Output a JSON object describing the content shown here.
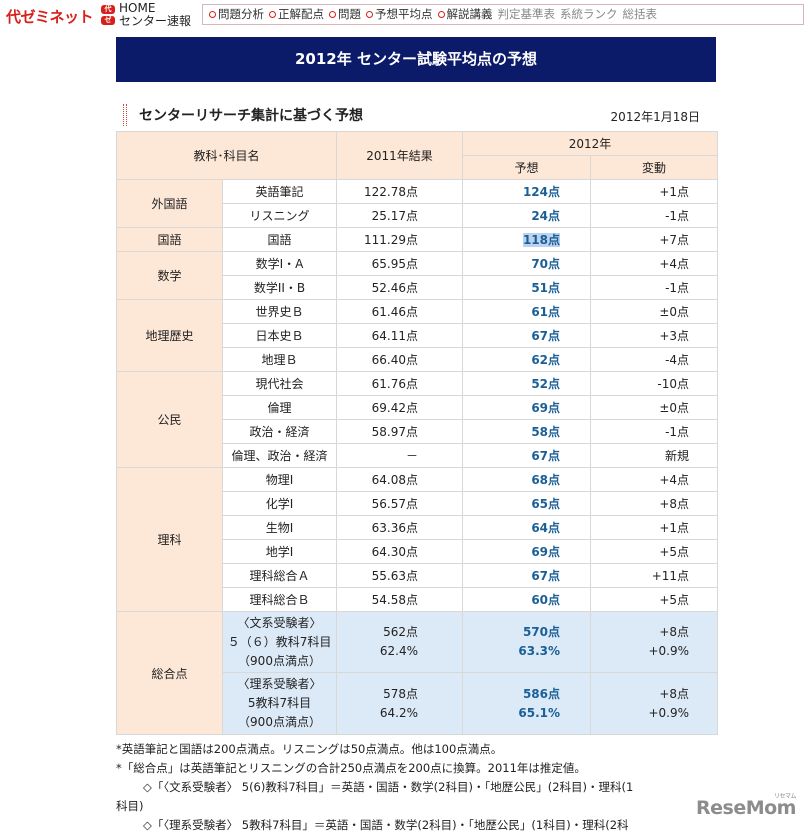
{
  "header": {
    "logo": "代ゼミネット",
    "logo_mark": [
      "代",
      "ゼ"
    ],
    "home": "HOME",
    "home_sub": "センター速報",
    "nav": [
      {
        "label": "問題分析",
        "active": true
      },
      {
        "label": "正解配点",
        "active": true
      },
      {
        "label": "問題",
        "active": true
      },
      {
        "label": "予想平均点",
        "active": true
      },
      {
        "label": "解説講義",
        "active": true
      },
      {
        "label": "判定基準表",
        "active": false
      },
      {
        "label": "系統ランク",
        "active": false
      },
      {
        "label": "総括表",
        "active": false
      }
    ]
  },
  "banner": "2012年 センター試験平均点の予想",
  "subhead": {
    "title": "センターリサーチ集計に基づく予想",
    "date": "2012年1月18日"
  },
  "table": {
    "h_subject": "教科･科目名",
    "h_2011": "2011年結果",
    "h_2012": "2012年",
    "h_pred": "予想",
    "h_change": "変動",
    "groups": [
      {
        "name": "外国語",
        "rows": [
          {
            "subj": "英語筆記",
            "r2011": "122.78点",
            "pred": "124点",
            "chg": "+1点"
          },
          {
            "subj": "リスニング",
            "r2011": "25.17点",
            "pred": "24点",
            "chg": "-1点"
          }
        ]
      },
      {
        "name": "国語",
        "rows": [
          {
            "subj": "国語",
            "r2011": "111.29点",
            "pred": "118点",
            "chg": "+7点"
          }
        ]
      },
      {
        "name": "数学",
        "rows": [
          {
            "subj": "数学I・A",
            "r2011": "65.95点",
            "pred": "70点",
            "chg": "+4点"
          },
          {
            "subj": "数学II・B",
            "r2011": "52.46点",
            "pred": "51点",
            "chg": "-1点"
          }
        ]
      },
      {
        "name": "地理歴史",
        "rows": [
          {
            "subj": "世界史Ｂ",
            "r2011": "61.46点",
            "pred": "61点",
            "chg": "±0点"
          },
          {
            "subj": "日本史Ｂ",
            "r2011": "64.11点",
            "pred": "67点",
            "chg": "+3点"
          },
          {
            "subj": "地理Ｂ",
            "r2011": "66.40点",
            "pred": "62点",
            "chg": "-4点"
          }
        ]
      },
      {
        "name": "公民",
        "rows": [
          {
            "subj": "現代社会",
            "r2011": "61.76点",
            "pred": "52点",
            "chg": "-10点"
          },
          {
            "subj": "倫理",
            "r2011": "69.42点",
            "pred": "69点",
            "chg": "±0点"
          },
          {
            "subj": "政治・経済",
            "r2011": "58.97点",
            "pred": "58点",
            "chg": "-1点"
          },
          {
            "subj": "倫理、政治・経済",
            "r2011": "－",
            "pred": "67点",
            "chg": "新規"
          }
        ]
      },
      {
        "name": "理科",
        "rows": [
          {
            "subj": "物理I",
            "r2011": "64.08点",
            "pred": "68点",
            "chg": "+4点"
          },
          {
            "subj": "化学I",
            "r2011": "56.57点",
            "pred": "65点",
            "chg": "+8点"
          },
          {
            "subj": "生物I",
            "r2011": "63.36点",
            "pred": "64点",
            "chg": "+1点"
          },
          {
            "subj": "地学I",
            "r2011": "64.30点",
            "pred": "69点",
            "chg": "+5点"
          },
          {
            "subj": "理科総合Ａ",
            "r2011": "55.63点",
            "pred": "67点",
            "chg": "+11点"
          },
          {
            "subj": "理科総合Ｂ",
            "r2011": "54.58点",
            "pred": "60点",
            "chg": "+5点"
          }
        ]
      }
    ],
    "total": {
      "name": "総合点",
      "rows": [
        {
          "subj": [
            "〈文系受験者〉",
            "５（６）教科7科目",
            "（900点満点）"
          ],
          "r2011": [
            "562点",
            "62.4%"
          ],
          "pred": [
            "570点",
            "63.3%"
          ],
          "chg": [
            "+8点",
            "+0.9%"
          ]
        },
        {
          "subj": [
            "〈理系受験者〉",
            "5教科7科目",
            "（900点満点）"
          ],
          "r2011": [
            "578点",
            "64.2%"
          ],
          "pred": [
            "586点",
            "65.1%"
          ],
          "chg": [
            "+8点",
            "+0.9%"
          ]
        }
      ]
    }
  },
  "notes": [
    "*英語筆記と国語は200点満点。リスニングは50点満点。他は100点満点。",
    "*「総合点」は英語筆記とリスニングの合計250点満点を200点に換算。2011年は推定値。",
    "◇「〈文系受験者〉 5(6)教科7科目」＝英語・国語・数学(2科目)・「地歴公民」(2科目)・理科(1",
    "科目)",
    "◇「〈理系受験者〉 5教科7科目」＝英語・国語・数学(2科目)・「地歴公民」(1科目)・理科(2科"
  ],
  "watermark": {
    "text": "ReseMom",
    "sub": "リセマム"
  }
}
